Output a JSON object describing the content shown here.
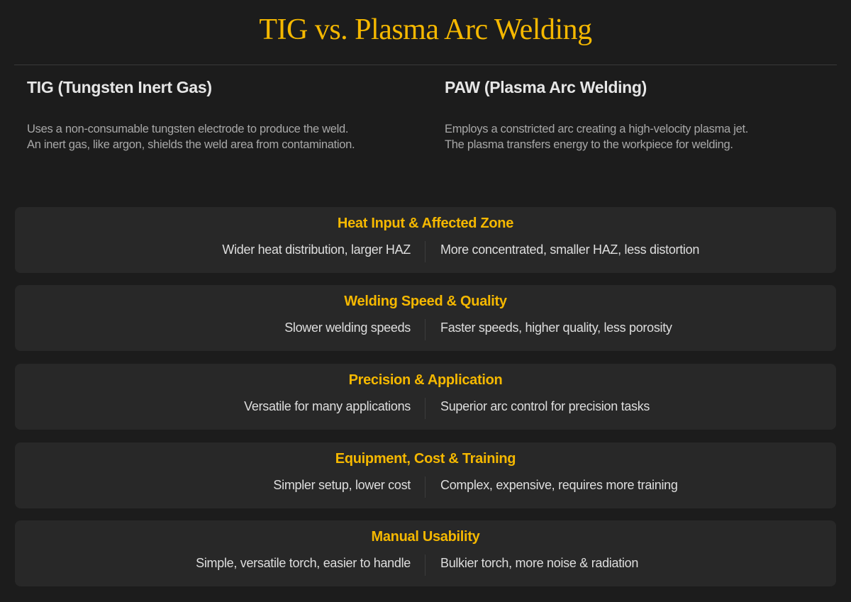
{
  "title": "TIG vs. Plasma Arc Welding",
  "columns": [
    {
      "heading": "TIG (Tungsten Inert Gas)",
      "desc1": "Uses a non-consumable tungsten electrode to produce the weld.",
      "desc2": "An inert gas, like argon, shields the weld area from contamination."
    },
    {
      "heading": "PAW (Plasma Arc Welding)",
      "desc1": "Employs a constricted arc creating a high-velocity plasma jet.",
      "desc2": "The plasma transfers energy to the workpiece for welding."
    }
  ],
  "comparisons": [
    {
      "category": "Heat Input & Affected Zone",
      "tig": "Wider heat distribution, larger HAZ",
      "paw": "More concentrated, smaller HAZ, less distortion"
    },
    {
      "category": "Welding Speed & Quality",
      "tig": "Slower welding speeds",
      "paw": "Faster speeds, higher quality, less porosity"
    },
    {
      "category": "Precision & Application",
      "tig": "Versatile for many applications",
      "paw": "Superior arc control for precision tasks"
    },
    {
      "category": "Equipment, Cost & Training",
      "tig": "Simpler setup, lower cost",
      "paw": "Complex, expensive, requires more training"
    },
    {
      "category": "Manual Usability",
      "tig": "Simple, versatile torch, easier to handle",
      "paw": "Bulkier torch, more noise & radiation"
    }
  ],
  "colors": {
    "accent": "#f5b800",
    "background": "#1c1c1c",
    "card": "#282828"
  }
}
